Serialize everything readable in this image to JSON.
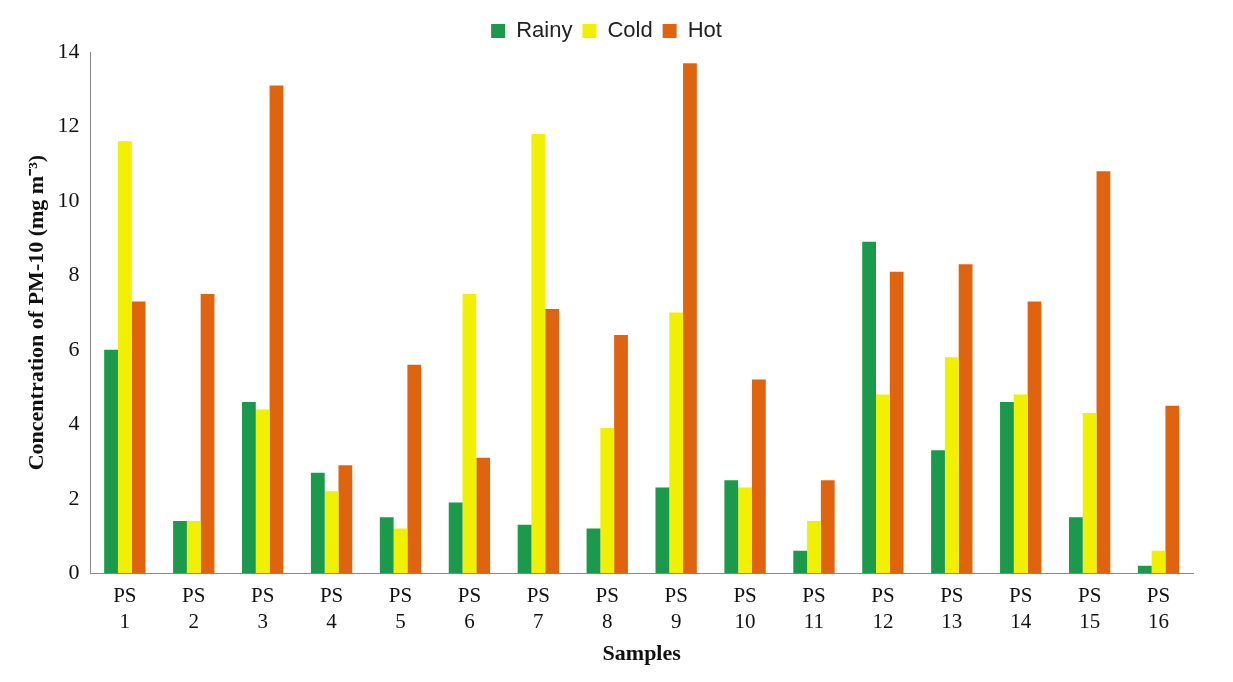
{
  "chart_data": {
    "type": "bar",
    "xlabel": "Samples",
    "ylabel": "Concentration of PM-10 (mg m⁻³)",
    "categories": [
      "PS 1",
      "PS 2",
      "PS 3",
      "PS 4",
      "PS 5",
      "PS 6",
      "PS 7",
      "PS 8",
      "PS 9",
      "PS 10",
      "PS 11",
      "PS 12",
      "PS 13",
      "PS 14",
      "PS 15",
      "PS 16"
    ],
    "series": [
      {
        "name": "Rainy",
        "color": "#1a9a4a",
        "values": [
          6.0,
          1.4,
          4.6,
          2.7,
          1.5,
          1.9,
          1.3,
          1.2,
          2.3,
          2.5,
          0.6,
          8.9,
          3.3,
          4.6,
          1.5,
          0.2
        ]
      },
      {
        "name": "Cold",
        "color": "#f0f000",
        "values": [
          11.6,
          1.4,
          4.4,
          2.2,
          1.2,
          7.5,
          11.8,
          3.9,
          7.0,
          2.3,
          1.4,
          4.8,
          5.8,
          4.8,
          4.3,
          0.6
        ]
      },
      {
        "name": "Hot",
        "color": "#e0640f",
        "values": [
          7.3,
          7.5,
          13.1,
          2.9,
          5.6,
          3.1,
          7.1,
          6.4,
          13.7,
          5.2,
          2.5,
          8.1,
          8.3,
          7.3,
          10.8,
          4.5
        ]
      }
    ],
    "ylim": [
      0,
      14
    ],
    "yticks": [
      0,
      2,
      4,
      6,
      8,
      10,
      12,
      14
    ],
    "grid": false,
    "legend": "top"
  }
}
